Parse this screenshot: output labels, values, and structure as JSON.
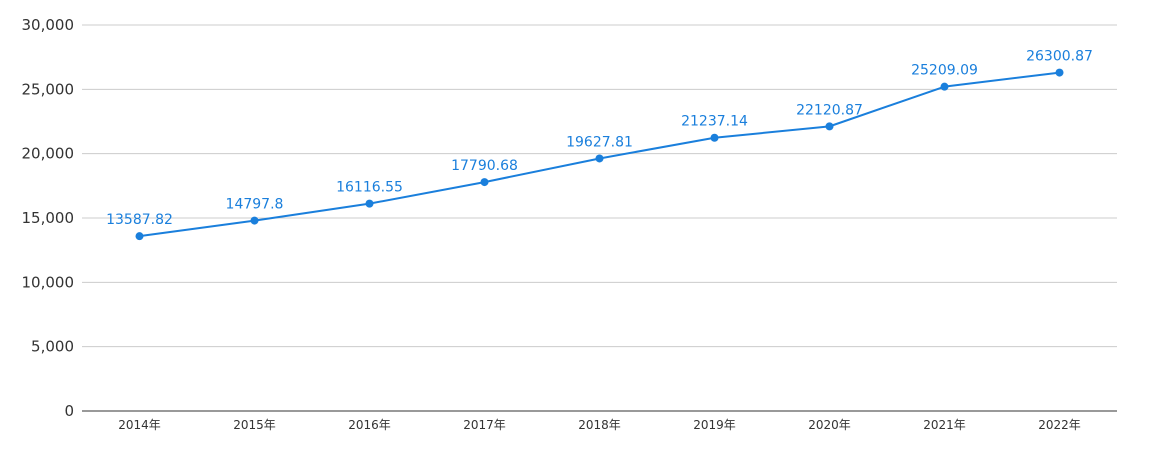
{
  "chart_data": {
    "type": "line",
    "categories": [
      "2014年",
      "2015年",
      "2016年",
      "2017年",
      "2018年",
      "2019年",
      "2020年",
      "2021年",
      "2022年"
    ],
    "series": [
      {
        "values": [
          13587.82,
          14797.8,
          16116.55,
          17790.68,
          19627.81,
          21237.14,
          22120.87,
          25209.09,
          26300.87
        ],
        "labels": [
          "13587.82",
          "14797.8",
          "16116.55",
          "17790.68",
          "19627.81",
          "21237.14",
          "22120.87",
          "25209.09",
          "26300.87"
        ],
        "color": "#1a7fdc"
      }
    ],
    "ylim": [
      0,
      30000
    ],
    "yticks": [
      0,
      5000,
      10000,
      15000,
      20000,
      25000,
      30000
    ],
    "ytick_labels": [
      "0",
      "5,000",
      "10,000",
      "15,000",
      "20,000",
      "25,000",
      "30,000"
    ],
    "grid": true,
    "legend": "none",
    "title": "",
    "xlabel": "",
    "ylabel": ""
  }
}
